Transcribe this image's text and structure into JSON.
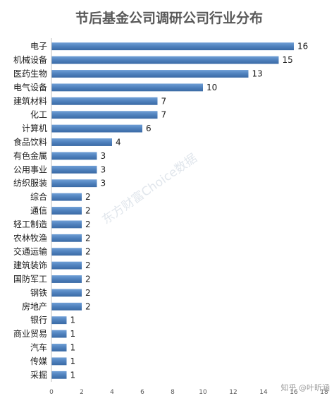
{
  "chart_data": {
    "type": "bar",
    "orientation": "horizontal",
    "title": "节后基金公司调研公司行业分布",
    "categories": [
      "电子",
      "机械设备",
      "医药生物",
      "电气设备",
      "建筑材料",
      "化工",
      "计算机",
      "食品饮料",
      "有色金属",
      "公用事业",
      "纺织服装",
      "综合",
      "通信",
      "轻工制造",
      "农林牧渔",
      "交通运输",
      "建筑装饰",
      "国防军工",
      "钢铁",
      "房地产",
      "银行",
      "商业贸易",
      "汽车",
      "传媒",
      "采掘"
    ],
    "values": [
      16,
      15,
      13,
      10,
      7,
      7,
      6,
      4,
      3,
      3,
      3,
      2,
      2,
      2,
      2,
      2,
      2,
      2,
      2,
      2,
      1,
      1,
      1,
      1,
      1
    ],
    "xlim": [
      0,
      18
    ],
    "xticks": [
      0,
      2,
      4,
      6,
      8,
      10,
      12,
      14,
      16,
      18
    ],
    "grid": false,
    "legend": "none",
    "bar_color": "#4f81bd"
  },
  "watermark": "东方财富Choice数据",
  "credit": "知乎 @叶昕涵"
}
